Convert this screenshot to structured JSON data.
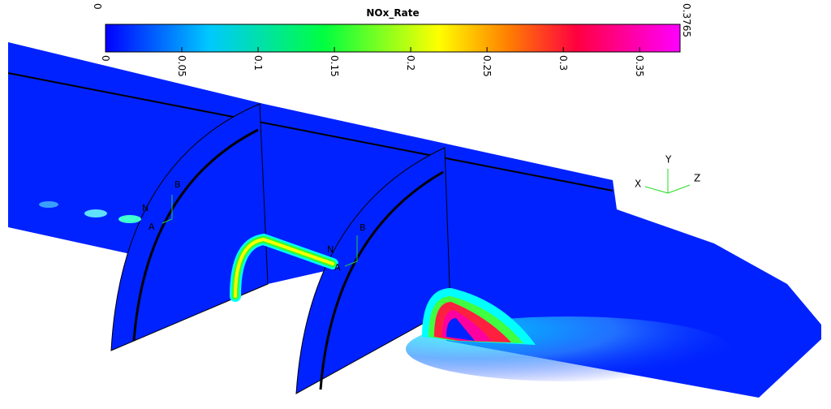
{
  "colorbar": {
    "title": "NOx_Rate",
    "min": 0,
    "max": 0.3765,
    "ticks": [
      0,
      0.05,
      0.1,
      0.15,
      0.2,
      0.25,
      0.3,
      0.35
    ]
  },
  "triad": {
    "x": "X",
    "y": "Y",
    "z": "Z"
  },
  "planes": [
    {
      "a": "A",
      "b": "B",
      "n": "N"
    },
    {
      "a": "A",
      "b": "B",
      "n": "N"
    }
  ]
}
